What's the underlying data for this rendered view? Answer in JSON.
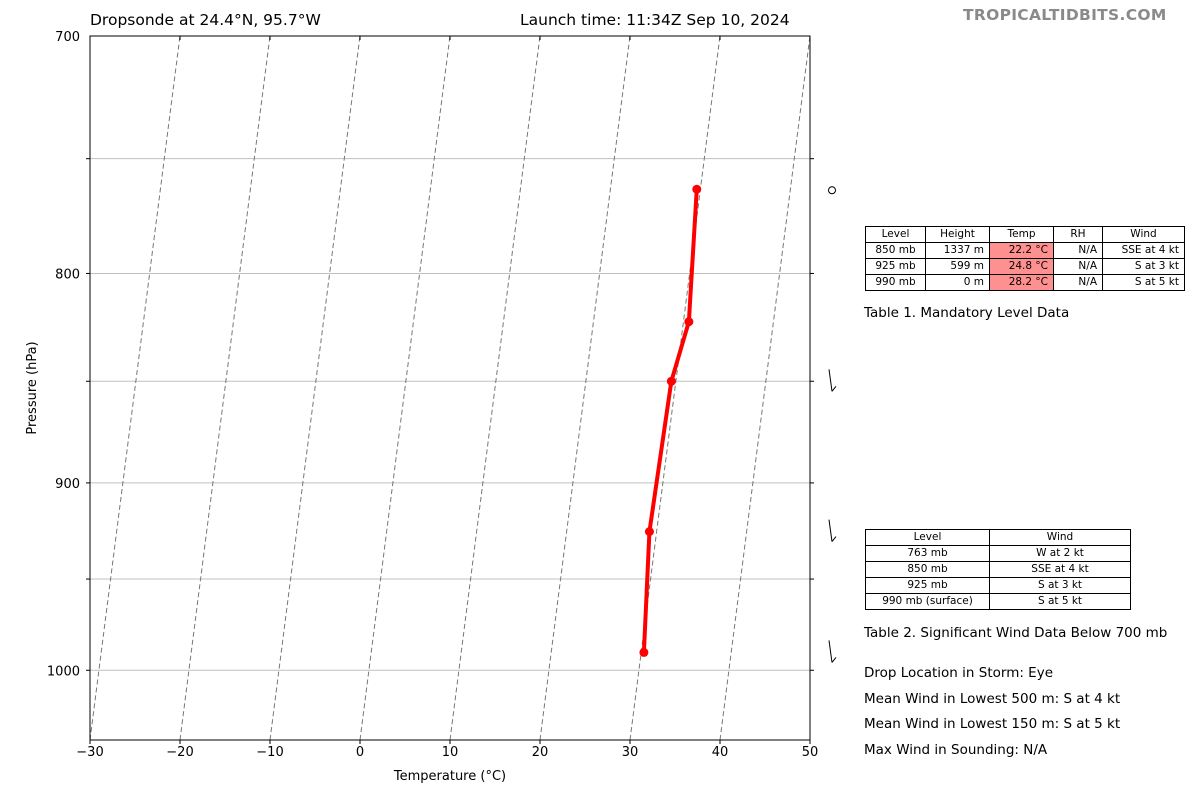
{
  "header": {
    "title_left": "Dropsonde at 24.4°N, 95.7°W",
    "title_right": "Launch time: 11:34Z Sep 10, 2024",
    "brand": "TROPICALTIDBITS.COM"
  },
  "chart_data": {
    "type": "line",
    "xlabel": "Temperature (°C)",
    "ylabel": "Pressure (hPa)",
    "xlim": [
      -30,
      50
    ],
    "ylim": [
      1040,
      700
    ],
    "y_scale": "log",
    "x_ticks": [
      "−30",
      "−20",
      "−10",
      "0",
      "10",
      "20",
      "30",
      "40",
      "50"
    ],
    "x_tick_values": [
      -30,
      -20,
      -10,
      0,
      10,
      20,
      30,
      40,
      50
    ],
    "y_ticks": [
      "700",
      "800",
      "900",
      "1000"
    ],
    "y_tick_values": [
      700,
      800,
      900,
      1000
    ],
    "y_gridlines": [
      750,
      800,
      850,
      900,
      950,
      1000
    ],
    "isotherm_skew": "skew-T",
    "series": [
      {
        "color": "#ff0000",
        "points": [
          {
            "p": 763,
            "t": 29.6
          },
          {
            "p": 822,
            "t": 30.6
          },
          {
            "p": 850,
            "t": 29.5
          },
          {
            "p": 925,
            "t": 29.2
          },
          {
            "p": 990,
            "t": 30.3
          }
        ]
      }
    ],
    "wind_barbs": [
      {
        "p": 763,
        "type": "calm"
      },
      {
        "p": 850,
        "type": "barb"
      },
      {
        "p": 925,
        "type": "barb"
      },
      {
        "p": 990,
        "type": "barb"
      }
    ],
    "grid": true
  },
  "table1": {
    "headers": [
      "Level",
      "Height",
      "Temp",
      "RH",
      "Wind"
    ],
    "rows": [
      [
        "850 mb",
        "1337 m",
        "22.2 °C",
        "N/A",
        "SSE at 4 kt"
      ],
      [
        "925 mb",
        "599 m",
        "24.8 °C",
        "N/A",
        "S at 3 kt"
      ],
      [
        "990 mb",
        "0 m",
        "28.2 °C",
        "N/A",
        "S at 5 kt"
      ]
    ],
    "temp_highlight_color": "#ff9090",
    "caption": "Table 1. Mandatory Level Data"
  },
  "table2": {
    "headers": [
      "Level",
      "Wind"
    ],
    "rows": [
      [
        "763 mb",
        "W at 2 kt"
      ],
      [
        "850 mb",
        "SSE at 4 kt"
      ],
      [
        "925 mb",
        "S at 3 kt"
      ],
      [
        "990 mb (surface)",
        "S at 5 kt"
      ]
    ],
    "caption": "Table 2. Significant Wind Data Below 700 mb"
  },
  "info": [
    "Drop Location in Storm: Eye",
    "Mean Wind in Lowest 500 m:  S at 4 kt",
    "Mean Wind in Lowest 150 m:  S at 5 kt",
    "Max Wind in Sounding:  N/A"
  ]
}
